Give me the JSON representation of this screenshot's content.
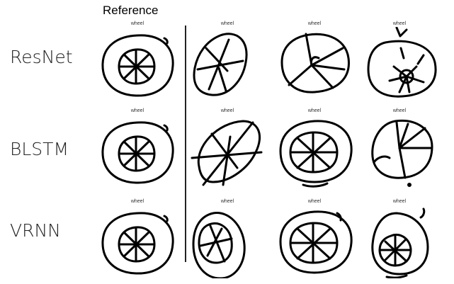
{
  "heading": "Reference",
  "rows": [
    {
      "label": "ResNet",
      "captions": [
        "wheel",
        "wheel",
        "wheel",
        "wheel"
      ],
      "icons": [
        "reference-wheel-icon",
        "resnet-wheel-icon-1",
        "resnet-wheel-icon-2",
        "resnet-wheel-icon-3"
      ]
    },
    {
      "label": "BLSTM",
      "captions": [
        "wheel",
        "wheel",
        "wheel",
        "wheel"
      ],
      "icons": [
        "reference-wheel-icon",
        "blstm-wheel-icon-1",
        "blstm-wheel-icon-2",
        "blstm-wheel-icon-3"
      ]
    },
    {
      "label": "VRNN",
      "captions": [
        "wheel",
        "wheel",
        "wheel",
        "wheel"
      ],
      "icons": [
        "reference-wheel-icon",
        "vrnn-wheel-icon-1",
        "vrnn-wheel-icon-2",
        "vrnn-wheel-icon-3"
      ]
    }
  ]
}
